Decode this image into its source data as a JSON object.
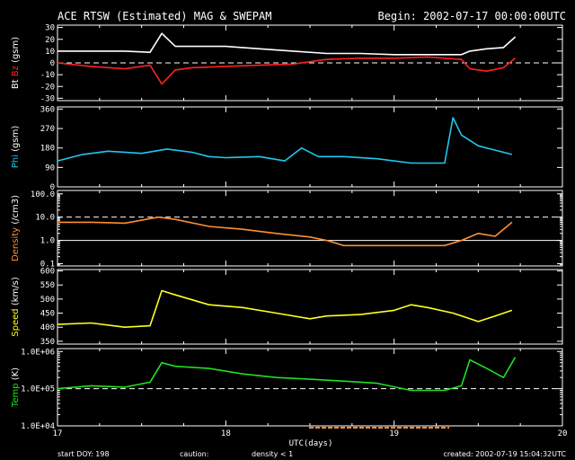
{
  "header": {
    "title": "ACE RTSW (Estimated) MAG & SWEPAM",
    "begin": "Begin: 2002-07-17 00:00:00UTC"
  },
  "footer": {
    "start_doy": "start DOY: 198",
    "caution": "caution:",
    "density_note": "density < 1",
    "created": "created: 2002-07-19 15:04:32UTC"
  },
  "colors": {
    "bt": "#ffffff",
    "bz": "#ff2020",
    "phi": "#20c8f0",
    "density": "#ff9030",
    "speed": "#ffff20",
    "temp": "#20e020",
    "caution_bar": "#ff9030"
  },
  "chart_data": {
    "type": "line",
    "x": {
      "label": "UTC(days)",
      "range": [
        17,
        20
      ],
      "ticks": [
        "17",
        "18",
        "19",
        "20"
      ]
    },
    "panels": [
      {
        "id": "mag",
        "ylabel_parts": [
          {
            "text": "Bt",
            "color": "#ffffff"
          },
          {
            "text": "Bz",
            "color": "#ff2020"
          },
          {
            "text": "(gsm)",
            "color": "#ffffff"
          }
        ],
        "ylim": [
          -32,
          32
        ],
        "scale": "linear",
        "ticks": [
          "30",
          "20",
          "10",
          "0",
          "-10",
          "-20",
          "-30"
        ],
        "tick_values": [
          30,
          20,
          10,
          0,
          -10,
          -20,
          -30
        ],
        "reference_lines": [
          0
        ],
        "series": [
          {
            "name": "Bt",
            "color": "#ffffff",
            "x": [
              17.0,
              17.2,
              17.4,
              17.55,
              17.62,
              17.7,
              17.8,
              18.0,
              18.2,
              18.4,
              18.6,
              18.8,
              19.0,
              19.2,
              19.4,
              19.45,
              19.55,
              19.65,
              19.72
            ],
            "y": [
              10,
              10,
              10,
              9,
              25,
              14,
              14,
              14,
              12,
              10,
              8,
              8,
              7,
              7,
              7,
              10,
              12,
              13,
              22
            ]
          },
          {
            "name": "Bz",
            "color": "#ff2020",
            "x": [
              17.0,
              17.2,
              17.4,
              17.55,
              17.62,
              17.7,
              17.8,
              18.0,
              18.2,
              18.4,
              18.6,
              18.8,
              19.0,
              19.2,
              19.4,
              19.45,
              19.55,
              19.65,
              19.72
            ],
            "y": [
              0,
              -3,
              -5,
              -2,
              -18,
              -6,
              -4,
              -3,
              -2,
              -1,
              3,
              4,
              4,
              5,
              3,
              -5,
              -7,
              -4,
              4
            ]
          }
        ]
      },
      {
        "id": "phi",
        "ylabel_parts": [
          {
            "text": "Phi",
            "color": "#20c8f0"
          },
          {
            "text": "(gsm)",
            "color": "#ffffff"
          }
        ],
        "ylim": [
          0,
          370
        ],
        "scale": "linear",
        "ticks": [
          "360",
          "270",
          "180",
          "90",
          "0"
        ],
        "tick_values": [
          360,
          270,
          180,
          90,
          0
        ],
        "reference_lines": [],
        "series": [
          {
            "name": "Phi",
            "color": "#20c8f0",
            "x": [
              17.0,
              17.15,
              17.3,
              17.5,
              17.65,
              17.8,
              17.9,
              18.0,
              18.2,
              18.35,
              18.45,
              18.55,
              18.7,
              18.9,
              19.1,
              19.3,
              19.35,
              19.4,
              19.5,
              19.6,
              19.7
            ],
            "y": [
              120,
              150,
              165,
              155,
              175,
              160,
              140,
              135,
              140,
              120,
              180,
              140,
              140,
              130,
              110,
              110,
              320,
              240,
              190,
              170,
              150
            ]
          }
        ]
      },
      {
        "id": "density",
        "ylabel_parts": [
          {
            "text": "Density",
            "color": "#ff9030"
          },
          {
            "text": "(/cm3)",
            "color": "#ffffff"
          }
        ],
        "ylim": [
          0.08,
          140
        ],
        "scale": "log",
        "ticks": [
          "100.0",
          "10.0",
          "1.0",
          "0.1"
        ],
        "tick_values": [
          100,
          10,
          1,
          0.1
        ],
        "reference_lines": [
          10,
          1
        ],
        "series": [
          {
            "name": "Density",
            "color": "#ff9030",
            "x": [
              17.0,
              17.2,
              17.4,
              17.6,
              17.7,
              17.9,
              18.1,
              18.3,
              18.5,
              18.6,
              18.7,
              18.9,
              19.1,
              19.3,
              19.4,
              19.5,
              19.6,
              19.7
            ],
            "y": [
              6,
              6,
              5.5,
              10,
              8,
              4,
              3,
              2,
              1.4,
              1.0,
              0.6,
              0.6,
              0.6,
              0.6,
              1.0,
              2,
              1.5,
              6
            ]
          }
        ]
      },
      {
        "id": "speed",
        "ylabel_parts": [
          {
            "text": "Speed",
            "color": "#ffff20"
          },
          {
            "text": "(km/s)",
            "color": "#ffffff"
          }
        ],
        "ylim": [
          340,
          605
        ],
        "scale": "linear",
        "ticks": [
          "600",
          "550",
          "500",
          "450",
          "400",
          "350"
        ],
        "tick_values": [
          600,
          550,
          500,
          450,
          400,
          350
        ],
        "reference_lines": [],
        "series": [
          {
            "name": "Speed",
            "color": "#ffff20",
            "x": [
              17.0,
              17.2,
              17.4,
              17.55,
              17.62,
              17.7,
              17.9,
              18.1,
              18.3,
              18.5,
              18.6,
              18.8,
              19.0,
              19.1,
              19.2,
              19.35,
              19.45,
              19.5,
              19.6,
              19.7
            ],
            "y": [
              410,
              415,
              400,
              405,
              530,
              515,
              480,
              470,
              450,
              430,
              440,
              445,
              460,
              480,
              470,
              450,
              430,
              420,
              440,
              460
            ]
          }
        ]
      },
      {
        "id": "temp",
        "ylabel_parts": [
          {
            "text": "Temp",
            "color": "#20e020"
          },
          {
            "text": "(K)",
            "color": "#ffffff"
          }
        ],
        "ylim": [
          10000,
          1200000
        ],
        "scale": "log",
        "ticks": [
          "1.0E+06",
          "1.0E+05",
          "1.0E+04"
        ],
        "tick_values": [
          1000000,
          100000,
          10000
        ],
        "reference_lines": [
          100000
        ],
        "series": [
          {
            "name": "Temp",
            "color": "#20e020",
            "x": [
              17.0,
              17.2,
              17.4,
              17.55,
              17.62,
              17.7,
              17.9,
              18.1,
              18.3,
              18.5,
              18.7,
              18.9,
              19.1,
              19.3,
              19.4,
              19.45,
              19.55,
              19.65,
              19.72
            ],
            "y": [
              100000,
              120000,
              110000,
              150000,
              500000,
              400000,
              350000,
              250000,
              200000,
              180000,
              160000,
              140000,
              90000,
              90000,
              120000,
              600000,
              350000,
              200000,
              700000
            ]
          }
        ]
      }
    ]
  }
}
